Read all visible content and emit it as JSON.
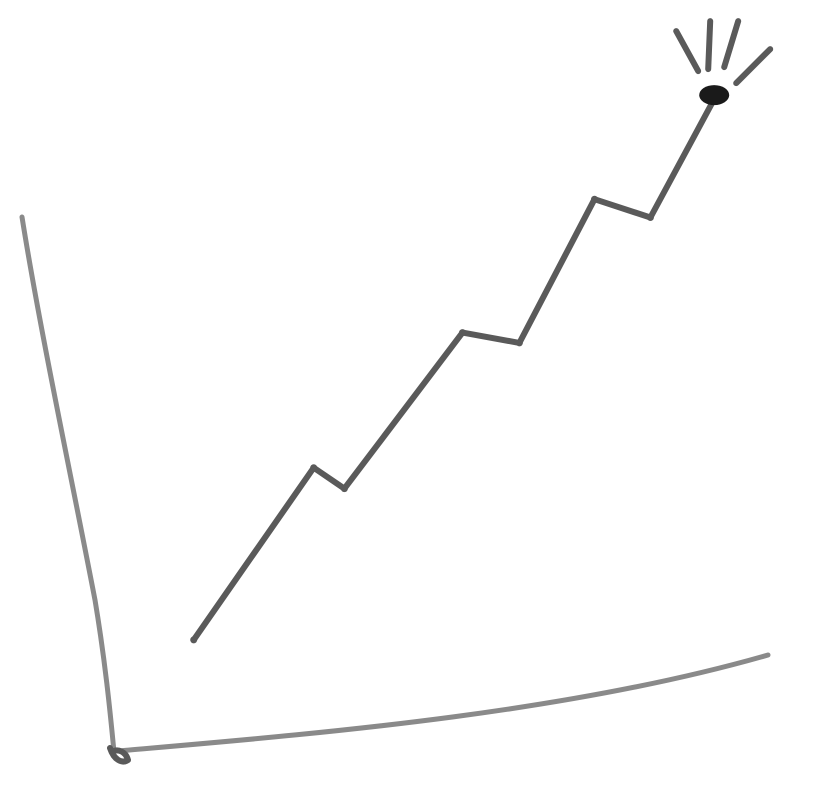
{
  "chart_data": {
    "type": "line",
    "title": "",
    "xlabel": "",
    "ylabel": "",
    "grid": false,
    "legend": "none",
    "axes_drawn": true,
    "tick_labels": false,
    "x": [
      0,
      1.2,
      1.6,
      2.8,
      3.5,
      4.2,
      4.9,
      5.5
    ],
    "series": [
      {
        "values": [
          0.5,
          2.5,
          2.2,
          4.0,
          3.8,
          5.5,
          5.2,
          6.6
        ]
      }
    ],
    "xlim": [
      -0.8,
      7.0
    ],
    "ylim": [
      -0.8,
      7.0
    ],
    "peak_marker": "lightbulb-burst",
    "colors": {
      "axis": "#8a8a8a",
      "line": "#5a5a5a",
      "marker": "#1a1a1a"
    }
  }
}
